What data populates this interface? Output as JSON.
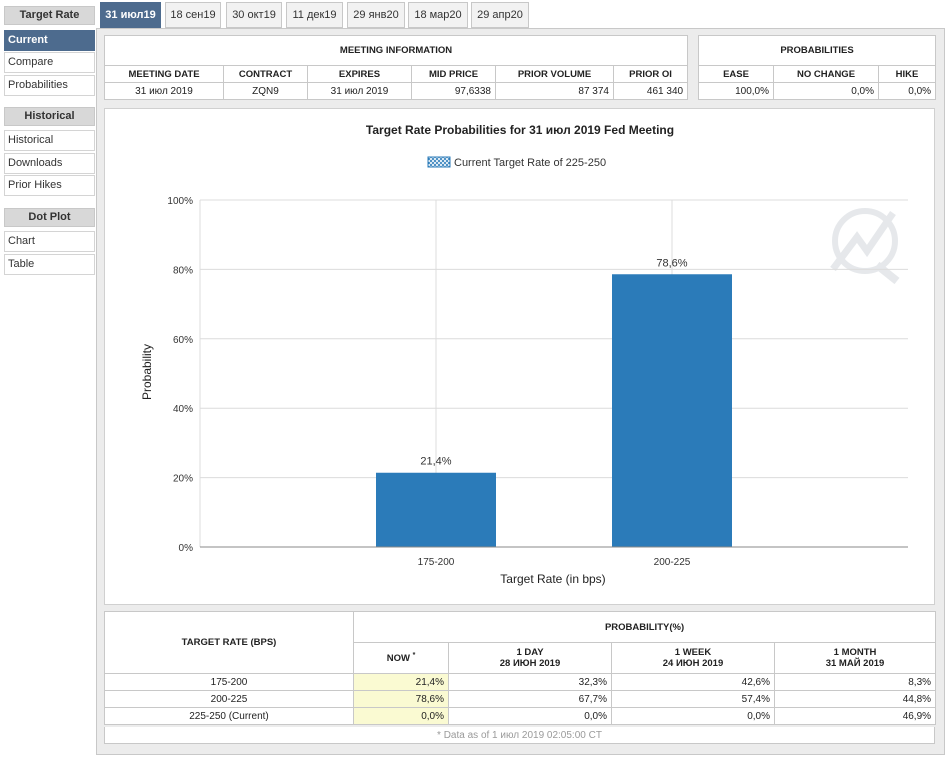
{
  "sidebar": {
    "groups": [
      {
        "title": "Target Rate",
        "items": [
          "Current",
          "Compare",
          "Probabilities"
        ],
        "active": 0
      },
      {
        "title": "Historical",
        "items": [
          "Historical",
          "Downloads",
          "Prior Hikes"
        ]
      },
      {
        "title": "Dot Plot",
        "items": [
          "Chart",
          "Table"
        ]
      }
    ]
  },
  "tabs": [
    "31 июл19",
    "18 сен19",
    "30 окт19",
    "11 дек19",
    "29 янв20",
    "18 мар20",
    "29 апр20"
  ],
  "active_tab": 0,
  "meeting_info": {
    "title": "MEETING INFORMATION",
    "headers": [
      "MEETING DATE",
      "CONTRACT",
      "EXPIRES",
      "MID PRICE",
      "PRIOR VOLUME",
      "PRIOR OI"
    ],
    "row": [
      "31 июл 2019",
      "ZQN9",
      "31 июл 2019",
      "97,6338",
      "87 374",
      "461 340"
    ]
  },
  "probabilities": {
    "title": "PROBABILITIES",
    "headers": [
      "EASE",
      "NO CHANGE",
      "HIKE"
    ],
    "row": [
      "100,0%",
      "0,0%",
      "0,0%"
    ]
  },
  "chart_data": {
    "type": "bar",
    "title": "Target Rate Probabilities for 31 июл 2019 Fed Meeting",
    "legend": "Current Target Rate of 225-250",
    "legend_position": "top-center",
    "categories": [
      "175-200",
      "200-225"
    ],
    "values": [
      21.4,
      78.6
    ],
    "data_labels": [
      "21,4%",
      "78,6%"
    ],
    "xlabel": "Target Rate (in bps)",
    "ylabel": "Probability",
    "ylim": [
      0,
      100
    ],
    "yticks": [
      "0%",
      "20%",
      "40%",
      "60%",
      "80%",
      "100%"
    ],
    "grid": true,
    "bar_color": "#2b7bb9"
  },
  "bottom_table": {
    "col_target": "TARGET RATE (BPS)",
    "col_prob": "PROBABILITY(%)",
    "sub": [
      {
        "line1": "NOW",
        "line2": ""
      },
      {
        "line1": "1 DAY",
        "line2": "28 ИЮН 2019"
      },
      {
        "line1": "1 WEEK",
        "line2": "24 ИЮН 2019"
      },
      {
        "line1": "1 MONTH",
        "line2": "31 МАЙ 2019"
      }
    ],
    "now_mark": "*",
    "rows": [
      {
        "rate": "175-200",
        "vals": [
          "21,4%",
          "32,3%",
          "42,6%",
          "8,3%"
        ]
      },
      {
        "rate": "200-225",
        "vals": [
          "78,6%",
          "67,7%",
          "57,4%",
          "44,8%"
        ]
      },
      {
        "rate": "225-250 (Current)",
        "vals": [
          "0,0%",
          "0,0%",
          "0,0%",
          "46,9%"
        ]
      }
    ],
    "footnote": "* Data as of 1 июл 2019 02:05:00 CT"
  }
}
